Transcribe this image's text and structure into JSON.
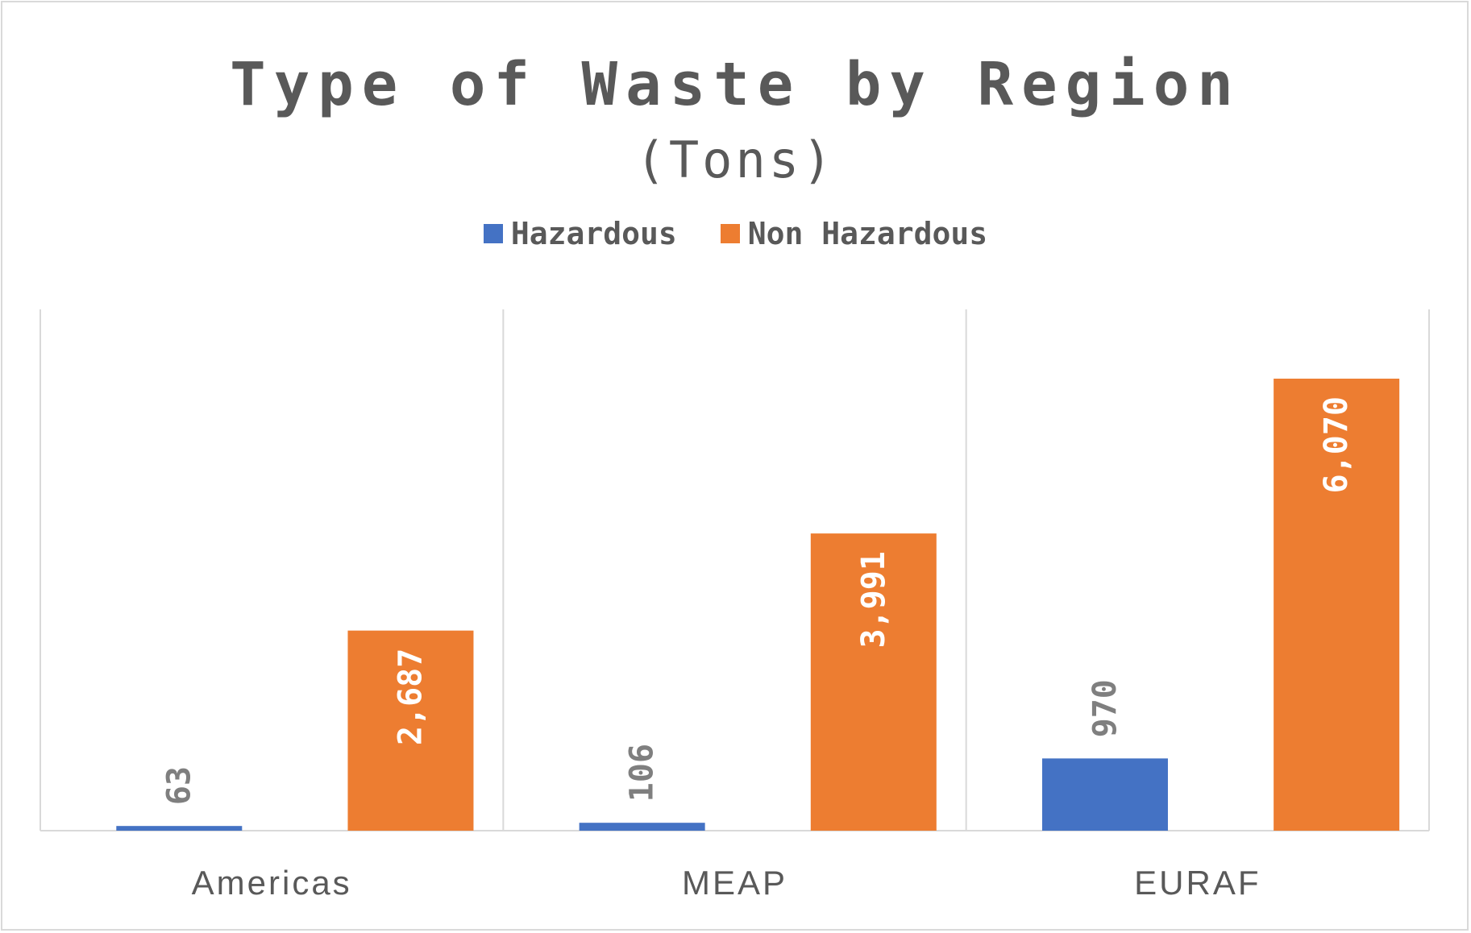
{
  "chart_data": {
    "type": "bar",
    "title": "Type of Waste by Region",
    "subtitle": "(Tons)",
    "categories": [
      "Americas",
      "MEAP",
      "EURAF"
    ],
    "series": [
      {
        "name": "Hazardous",
        "color": "#4472c4",
        "values": [
          63,
          106,
          970
        ],
        "labels": [
          "63",
          "106",
          "970"
        ],
        "label_color": "#7f7f7f"
      },
      {
        "name": "Non Hazardous",
        "color": "#ed7d31",
        "values": [
          2687,
          3991,
          6070
        ],
        "labels": [
          "2,687",
          "3,991",
          "6,070"
        ],
        "label_color": "#ffffff"
      }
    ],
    "xlabel": "",
    "ylabel": "",
    "ylim": [
      0,
      7000
    ],
    "y_axis_visible": false,
    "grid": "vertical category separators",
    "legend_position": "top",
    "data_labels": "rotated -90 degrees"
  }
}
